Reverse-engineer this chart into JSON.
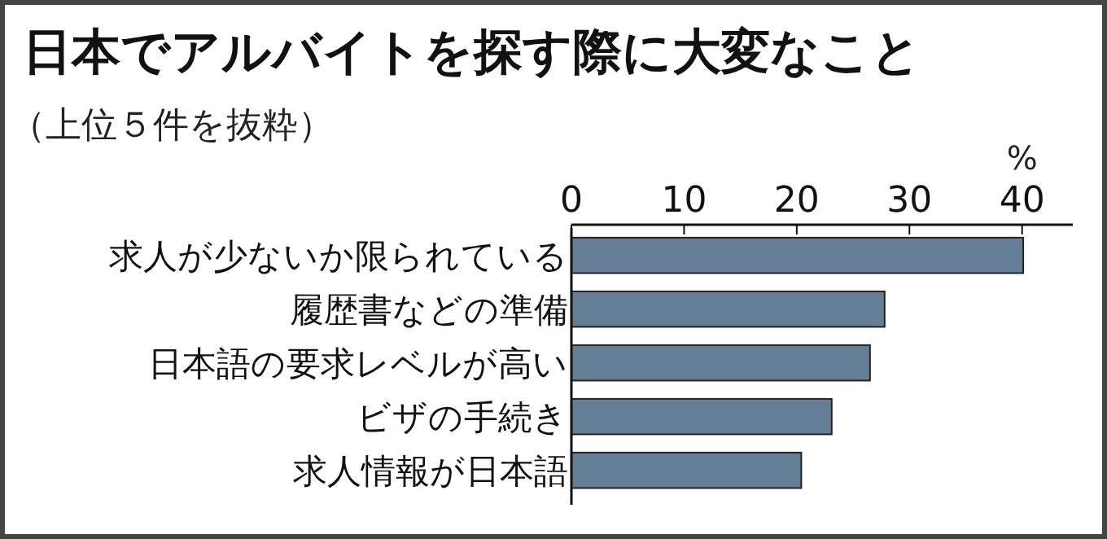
{
  "chart_data": {
    "type": "bar",
    "orientation": "horizontal",
    "title": "日本でアルバイトを探す際に大変なこと",
    "subtitle": "（上位５件を抜粋）",
    "xlabel": "%",
    "categories": [
      "求人が少ないか限られている",
      "履歴書などの準備",
      "日本語の要求レベルが高い",
      "ビザの手続き",
      "求人情報が日本語"
    ],
    "values": [
      40.1,
      27.8,
      26.5,
      23.1,
      20.4
    ],
    "color": "#647e96",
    "xlim": [
      0,
      44.5
    ],
    "xticks": [
      0,
      10,
      20,
      30,
      40
    ],
    "grid": false
  }
}
